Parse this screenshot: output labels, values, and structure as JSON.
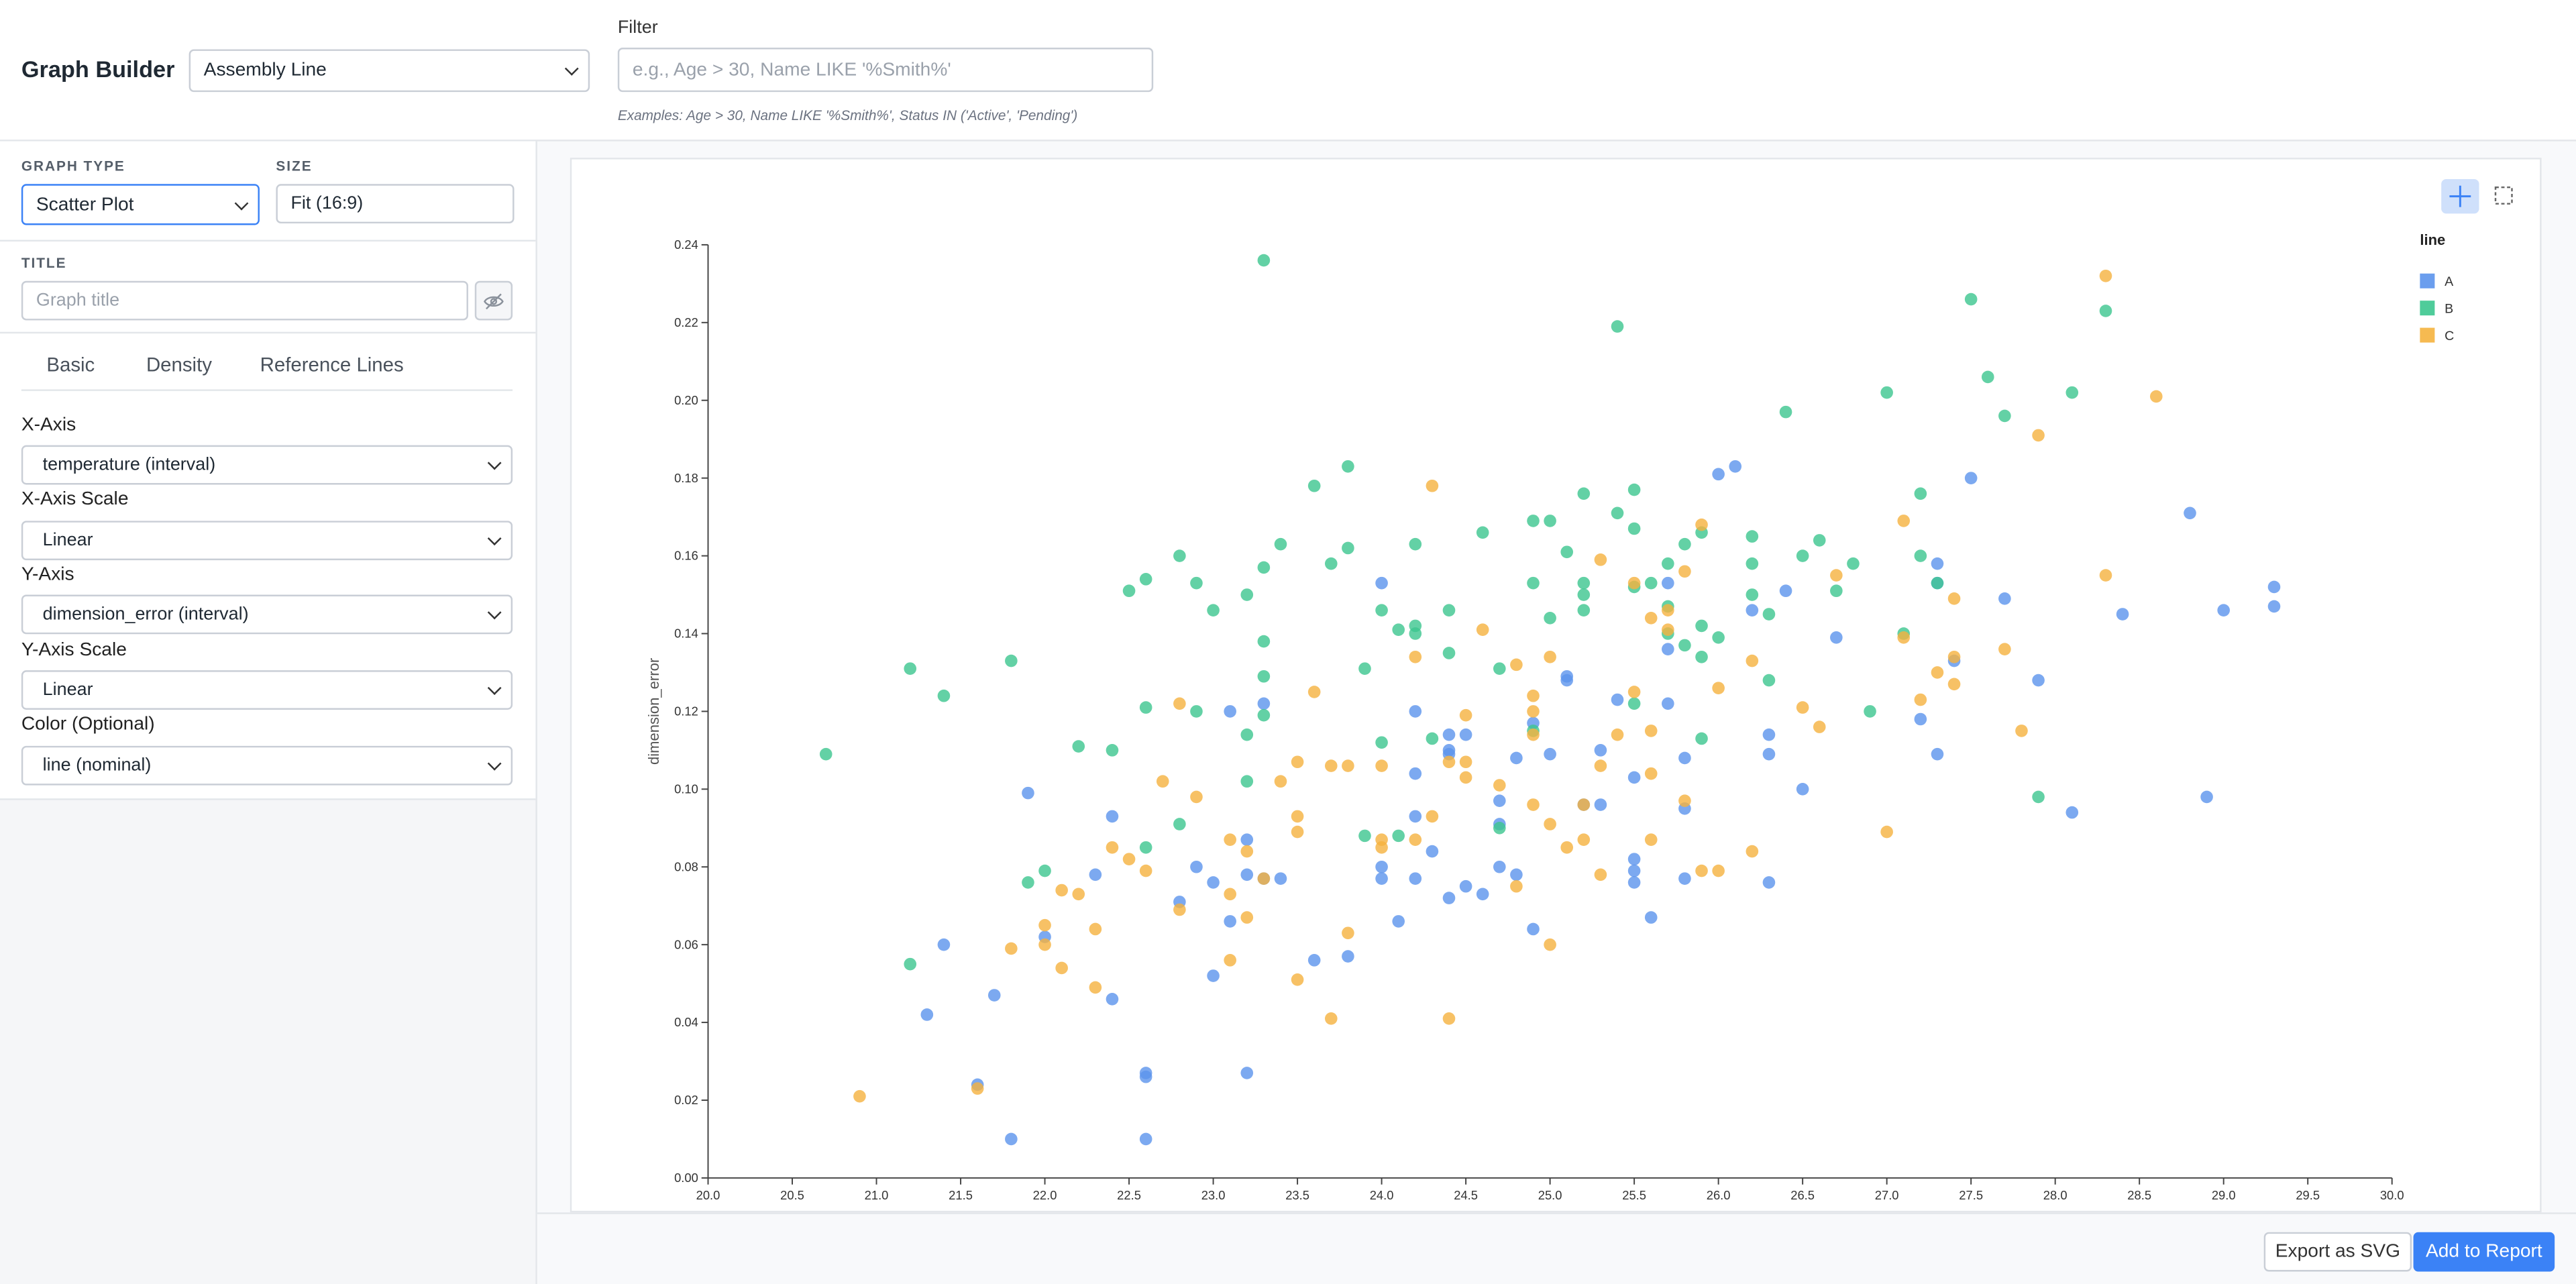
{
  "header": {
    "title": "Graph Builder",
    "dataset": "Assembly Line",
    "filter_label": "Filter",
    "filter_placeholder": "e.g., Age > 30, Name LIKE '%Smith%'",
    "filter_examples": "Examples: Age > 30, Name LIKE '%Smith%', Status IN ('Active', 'Pending')"
  },
  "sidebar": {
    "graph_type_label": "GRAPH TYPE",
    "graph_type": "Scatter Plot",
    "size_label": "SIZE",
    "size": "Fit (16:9)",
    "title_label": "TITLE",
    "title_placeholder": "Graph title",
    "tabs": [
      "Basic",
      "Density",
      "Reference Lines"
    ],
    "fields": [
      {
        "label": "X-Axis",
        "value": "temperature (interval)"
      },
      {
        "label": "X-Axis Scale",
        "value": "Linear"
      },
      {
        "label": "Y-Axis",
        "value": "dimension_error (interval)"
      },
      {
        "label": "Y-Axis Scale",
        "value": "Linear"
      },
      {
        "label": "Color (Optional)",
        "value": "line (nominal)"
      }
    ]
  },
  "footer": {
    "export": "Export as SVG",
    "add": "Add to Report"
  },
  "chart_data": {
    "type": "scatter",
    "y_label": "dimension_error",
    "legend_title": "line",
    "legend_position": "right",
    "xlim": [
      20,
      30
    ],
    "ylim": [
      0,
      0.24
    ],
    "xticks": [
      {
        "value": 20,
        "label": "20.0"
      },
      {
        "value": 20.5,
        "label": "20.5"
      },
      {
        "value": 21,
        "label": "21.0"
      },
      {
        "value": 21.5,
        "label": "21.5"
      },
      {
        "value": 22,
        "label": "22.0"
      },
      {
        "value": 22.5,
        "label": "22.5"
      },
      {
        "value": 23,
        "label": "23.0"
      },
      {
        "value": 23.5,
        "label": "23.5"
      },
      {
        "value": 24,
        "label": "24.0"
      },
      {
        "value": 24.5,
        "label": "24.5"
      },
      {
        "value": 25,
        "label": "25.0"
      },
      {
        "value": 25.5,
        "label": "25.5"
      },
      {
        "value": 26,
        "label": "26.0"
      },
      {
        "value": 26.5,
        "label": "26.5"
      },
      {
        "value": 27,
        "label": "27.0"
      },
      {
        "value": 27.5,
        "label": "27.5"
      },
      {
        "value": 28,
        "label": "28.0"
      },
      {
        "value": 28.5,
        "label": "28.5"
      },
      {
        "value": 29,
        "label": "29.0"
      },
      {
        "value": 29.5,
        "label": "29.5"
      },
      {
        "value": 30,
        "label": "30.0"
      }
    ],
    "yticks": [
      {
        "value": 0,
        "label": "0.00"
      },
      {
        "value": 0.02,
        "label": "0.02"
      },
      {
        "value": 0.04,
        "label": "0.04"
      },
      {
        "value": 0.06,
        "label": "0.06"
      },
      {
        "value": 0.08,
        "label": "0.08"
      },
      {
        "value": 0.1,
        "label": "0.10"
      },
      {
        "value": 0.12,
        "label": "0.12"
      },
      {
        "value": 0.14,
        "label": "0.14"
      },
      {
        "value": 0.16,
        "label": "0.16"
      },
      {
        "value": 0.18,
        "label": "0.18"
      },
      {
        "value": 0.2,
        "label": "0.20"
      },
      {
        "value": 0.22,
        "label": "0.22"
      },
      {
        "value": 0.24,
        "label": "0.24"
      }
    ],
    "grid": false,
    "series": [
      {
        "name": "A",
        "color": "#5b93ec",
        "x": [
          29.3,
          29.3,
          28.8,
          28.9,
          29.0,
          28.4,
          28.1,
          27.9,
          27.7,
          27.5,
          27.4,
          27.3,
          27.3,
          27.3,
          27.2,
          26.7,
          26.5,
          26.4,
          26.3,
          26.3,
          26.3,
          26.2,
          26.1,
          26.0,
          25.7,
          25.7,
          25.7,
          25.8,
          25.8,
          25.8,
          25.6,
          25.5,
          25.5,
          25.5,
          25.5,
          25.4,
          25.3,
          25.3,
          25.2,
          25.1,
          25.1,
          25.0,
          24.9,
          24.9,
          24.8,
          24.8,
          24.7,
          24.7,
          24.7,
          24.6,
          24.5,
          24.5,
          24.4,
          24.4,
          24.4,
          24.4,
          24.3,
          24.2,
          24.2,
          24.2,
          24.2,
          24.1,
          24.0,
          24.0,
          24.0,
          23.8,
          23.6,
          23.4,
          23.3,
          23.3,
          23.2,
          23.2,
          23.2,
          23.1,
          23.1,
          23.0,
          23.0,
          22.9,
          22.8,
          22.6,
          22.6,
          22.6,
          22.4,
          22.4,
          22.3,
          22.0,
          21.9,
          21.7,
          21.6,
          21.8,
          21.4,
          21.3
        ],
        "values": [
          0.152,
          0.147,
          0.171,
          0.098,
          0.146,
          0.145,
          0.094,
          0.128,
          0.149,
          0.18,
          0.133,
          0.158,
          0.153,
          0.109,
          0.118,
          0.139,
          0.1,
          0.151,
          0.076,
          0.109,
          0.114,
          0.146,
          0.183,
          0.181,
          0.136,
          0.122,
          0.153,
          0.108,
          0.095,
          0.077,
          0.067,
          0.079,
          0.076,
          0.082,
          0.103,
          0.123,
          0.11,
          0.096,
          0.096,
          0.129,
          0.128,
          0.109,
          0.117,
          0.064,
          0.078,
          0.108,
          0.091,
          0.097,
          0.08,
          0.073,
          0.075,
          0.114,
          0.114,
          0.11,
          0.109,
          0.072,
          0.084,
          0.077,
          0.093,
          0.12,
          0.104,
          0.066,
          0.077,
          0.08,
          0.153,
          0.057,
          0.056,
          0.077,
          0.122,
          0.077,
          0.087,
          0.078,
          0.027,
          0.066,
          0.12,
          0.052,
          0.076,
          0.08,
          0.071,
          0.027,
          0.026,
          0.01,
          0.093,
          0.046,
          0.078,
          0.062,
          0.099,
          0.047,
          0.024,
          0.01,
          0.06,
          0.042
        ]
      },
      {
        "name": "B",
        "color": "#3cc68f",
        "x": [
          20.7,
          21.2,
          21.2,
          21.4,
          21.8,
          21.9,
          22.0,
          22.2,
          22.4,
          22.5,
          22.6,
          22.6,
          22.6,
          22.8,
          22.8,
          22.9,
          22.9,
          23.0,
          23.2,
          23.2,
          23.2,
          23.3,
          23.3,
          23.3,
          23.3,
          23.3,
          23.4,
          23.6,
          23.7,
          23.8,
          23.8,
          23.9,
          23.9,
          24.0,
          24.0,
          24.1,
          24.1,
          24.2,
          24.2,
          24.2,
          24.3,
          24.4,
          24.4,
          24.6,
          24.7,
          24.7,
          24.9,
          24.9,
          24.9,
          25.0,
          25.0,
          25.1,
          25.2,
          25.2,
          25.2,
          25.2,
          25.4,
          25.4,
          25.5,
          25.5,
          25.5,
          25.5,
          25.6,
          25.7,
          25.7,
          25.7,
          25.8,
          25.8,
          25.9,
          25.9,
          25.9,
          25.9,
          26.0,
          26.2,
          26.2,
          26.2,
          26.3,
          26.3,
          26.5,
          26.6,
          26.7,
          26.8,
          26.9,
          27.0,
          27.1,
          27.2,
          27.2,
          27.3,
          27.5,
          27.6,
          27.7,
          27.9,
          28.1,
          28.3,
          26.4
        ],
        "values": [
          0.109,
          0.131,
          0.055,
          0.124,
          0.133,
          0.076,
          0.079,
          0.111,
          0.11,
          0.151,
          0.154,
          0.121,
          0.085,
          0.091,
          0.16,
          0.153,
          0.12,
          0.146,
          0.15,
          0.114,
          0.102,
          0.236,
          0.157,
          0.138,
          0.129,
          0.119,
          0.163,
          0.178,
          0.158,
          0.183,
          0.162,
          0.131,
          0.088,
          0.112,
          0.146,
          0.141,
          0.088,
          0.163,
          0.142,
          0.14,
          0.113,
          0.146,
          0.135,
          0.166,
          0.131,
          0.09,
          0.115,
          0.153,
          0.169,
          0.169,
          0.144,
          0.161,
          0.176,
          0.153,
          0.15,
          0.146,
          0.171,
          0.219,
          0.177,
          0.167,
          0.152,
          0.122,
          0.153,
          0.158,
          0.147,
          0.14,
          0.163,
          0.137,
          0.166,
          0.134,
          0.113,
          0.142,
          0.139,
          0.165,
          0.158,
          0.15,
          0.128,
          0.145,
          0.16,
          0.164,
          0.151,
          0.158,
          0.12,
          0.202,
          0.14,
          0.176,
          0.16,
          0.153,
          0.226,
          0.206,
          0.196,
          0.098,
          0.202,
          0.223,
          0.197
        ]
      },
      {
        "name": "C",
        "color": "#f5b23e",
        "x": [
          20.9,
          21.6,
          21.8,
          22.0,
          22.0,
          22.1,
          22.1,
          22.2,
          22.3,
          22.3,
          22.4,
          22.5,
          22.6,
          22.7,
          22.8,
          22.8,
          22.9,
          23.1,
          23.1,
          23.1,
          23.2,
          23.2,
          23.3,
          23.4,
          23.5,
          23.5,
          23.5,
          23.5,
          23.6,
          23.7,
          23.7,
          23.8,
          23.8,
          24.0,
          24.0,
          24.0,
          24.2,
          24.2,
          24.3,
          24.3,
          24.4,
          24.4,
          24.5,
          24.5,
          24.5,
          24.6,
          24.7,
          24.8,
          24.8,
          24.9,
          24.9,
          24.9,
          24.9,
          25.0,
          25.0,
          25.0,
          25.1,
          25.2,
          25.2,
          25.3,
          25.3,
          25.3,
          25.4,
          25.5,
          25.6,
          25.6,
          25.6,
          25.6,
          25.7,
          25.7,
          25.8,
          25.8,
          25.9,
          25.9,
          26.0,
          26.0,
          26.2,
          26.2,
          26.5,
          26.6,
          26.7,
          27.0,
          27.1,
          27.1,
          27.2,
          27.3,
          27.4,
          27.4,
          27.4,
          27.7,
          27.8,
          27.9,
          28.3,
          28.3,
          28.6,
          25.5
        ],
        "values": [
          0.021,
          0.023,
          0.059,
          0.065,
          0.06,
          0.054,
          0.074,
          0.073,
          0.049,
          0.064,
          0.085,
          0.082,
          0.079,
          0.102,
          0.122,
          0.069,
          0.098,
          0.087,
          0.073,
          0.056,
          0.084,
          0.067,
          0.077,
          0.102,
          0.107,
          0.093,
          0.089,
          0.051,
          0.125,
          0.106,
          0.041,
          0.106,
          0.063,
          0.106,
          0.087,
          0.085,
          0.087,
          0.134,
          0.178,
          0.093,
          0.041,
          0.107,
          0.119,
          0.103,
          0.107,
          0.141,
          0.101,
          0.132,
          0.075,
          0.124,
          0.12,
          0.114,
          0.096,
          0.134,
          0.091,
          0.06,
          0.085,
          0.096,
          0.087,
          0.159,
          0.106,
          0.078,
          0.114,
          0.125,
          0.087,
          0.115,
          0.144,
          0.104,
          0.146,
          0.141,
          0.156,
          0.097,
          0.168,
          0.079,
          0.126,
          0.079,
          0.133,
          0.084,
          0.121,
          0.116,
          0.155,
          0.089,
          0.169,
          0.139,
          0.123,
          0.13,
          0.134,
          0.127,
          0.149,
          0.136,
          0.115,
          0.191,
          0.155,
          0.232,
          0.201,
          0.153
        ]
      }
    ]
  }
}
